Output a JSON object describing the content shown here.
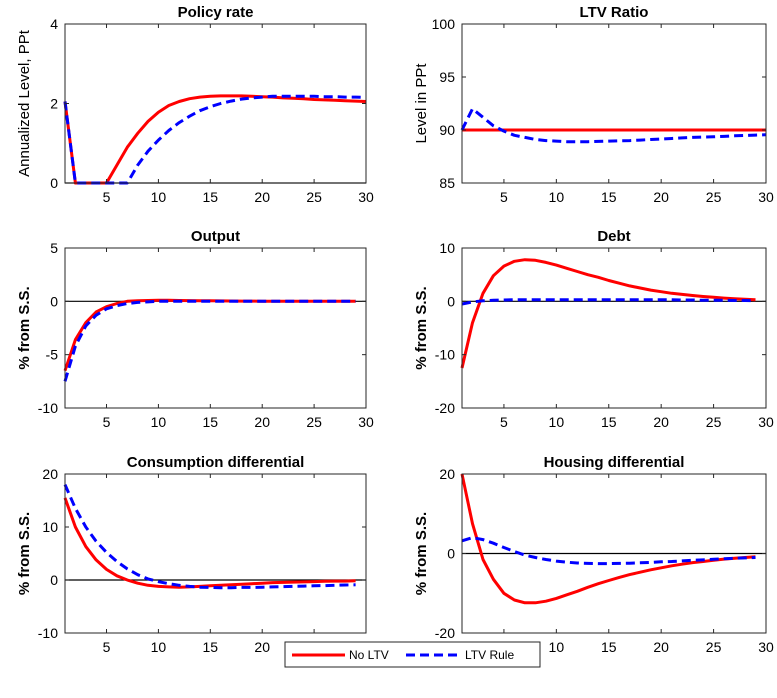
{
  "chart_data": [
    {
      "type": "line",
      "title": "Policy rate",
      "xlabel": "",
      "ylabel": "Annualized Level, PPt",
      "xlim": [
        1,
        30
      ],
      "ylim": [
        0,
        4
      ],
      "xticks": [
        5,
        10,
        15,
        20,
        25,
        30
      ],
      "yticks": [
        0,
        2,
        4
      ],
      "zero_line": true,
      "series": [
        {
          "name": "No LTV",
          "x": [
            1,
            2,
            3,
            4,
            5,
            6,
            7,
            8,
            9,
            10,
            11,
            12,
            13,
            14,
            15,
            16,
            17,
            18,
            19,
            20,
            21,
            22,
            23,
            24,
            25,
            26,
            27,
            28,
            29,
            30
          ],
          "values": [
            2.05,
            0,
            0,
            0,
            0,
            0.45,
            0.9,
            1.25,
            1.55,
            1.78,
            1.95,
            2.05,
            2.12,
            2.16,
            2.18,
            2.19,
            2.19,
            2.19,
            2.18,
            2.17,
            2.16,
            2.14,
            2.13,
            2.12,
            2.1,
            2.09,
            2.08,
            2.07,
            2.06,
            2.05
          ]
        },
        {
          "name": "LTV Rule",
          "x": [
            1,
            2,
            3,
            4,
            5,
            6,
            7,
            8,
            9,
            10,
            11,
            12,
            13,
            14,
            15,
            16,
            17,
            18,
            19,
            20,
            21,
            22,
            23,
            24,
            25,
            26,
            27,
            28,
            29,
            30
          ],
          "values": [
            2.05,
            0,
            0,
            0,
            0,
            0,
            0,
            0.45,
            0.8,
            1.08,
            1.32,
            1.52,
            1.68,
            1.82,
            1.92,
            2.0,
            2.06,
            2.11,
            2.14,
            2.16,
            2.18,
            2.18,
            2.18,
            2.18,
            2.18,
            2.17,
            2.17,
            2.16,
            2.16,
            2.15
          ]
        }
      ]
    },
    {
      "type": "line",
      "title": "LTV Ratio",
      "xlabel": "",
      "ylabel": "Level in PPt",
      "xlim": [
        1,
        30
      ],
      "ylim": [
        85,
        100
      ],
      "xticks": [
        5,
        10,
        15,
        20,
        25,
        30
      ],
      "yticks": [
        85,
        90,
        95,
        100
      ],
      "zero_line": false,
      "series": [
        {
          "name": "No LTV",
          "x": [
            1,
            30
          ],
          "values": [
            90,
            90
          ]
        },
        {
          "name": "LTV Rule",
          "x": [
            1,
            2,
            3,
            4,
            5,
            6,
            7,
            8,
            9,
            10,
            11,
            12,
            13,
            14,
            15,
            16,
            17,
            18,
            19,
            20,
            21,
            22,
            23,
            24,
            25,
            26,
            27,
            28,
            29,
            30
          ],
          "values": [
            90,
            92,
            91.2,
            90.4,
            89.9,
            89.5,
            89.3,
            89.1,
            89.0,
            88.95,
            88.9,
            88.9,
            88.9,
            88.92,
            88.95,
            88.98,
            89.0,
            89.05,
            89.1,
            89.15,
            89.2,
            89.25,
            89.3,
            89.33,
            89.36,
            89.4,
            89.45,
            89.48,
            89.52,
            89.55
          ]
        }
      ]
    },
    {
      "type": "line",
      "title": "Output",
      "xlabel": "",
      "ylabel": "% from S.S.",
      "xlim": [
        1,
        30
      ],
      "ylim": [
        -10,
        5
      ],
      "xticks": [
        5,
        10,
        15,
        20,
        25,
        30
      ],
      "yticks": [
        -10,
        -5,
        0,
        5
      ],
      "zero_line": true,
      "series": [
        {
          "name": "No LTV",
          "x": [
            1,
            2,
            3,
            4,
            5,
            6,
            7,
            8,
            9,
            10,
            11,
            12,
            13,
            14,
            15,
            16,
            17,
            18,
            19,
            20,
            21,
            22,
            23,
            24,
            25,
            26,
            27,
            28,
            29
          ],
          "values": [
            -6.5,
            -3.6,
            -2.0,
            -1.0,
            -0.5,
            -0.2,
            0,
            0.05,
            0.08,
            0.1,
            0.1,
            0.08,
            0.07,
            0.06,
            0.05,
            0.04,
            0.03,
            0.02,
            0.02,
            0.01,
            0.01,
            0,
            0,
            0,
            0,
            0,
            0,
            0,
            0
          ]
        },
        {
          "name": "LTV Rule",
          "x": [
            1,
            2,
            3,
            4,
            5,
            6,
            7,
            8,
            9,
            10,
            11,
            12,
            13,
            14,
            15,
            16,
            17,
            18,
            19,
            20,
            21,
            22,
            23,
            24,
            25,
            26,
            27,
            28,
            29
          ],
          "values": [
            -7.5,
            -4.2,
            -2.3,
            -1.3,
            -0.7,
            -0.4,
            -0.2,
            -0.1,
            -0.05,
            0,
            0,
            0,
            0,
            0,
            0,
            0,
            0,
            0,
            0,
            0,
            0,
            0,
            0,
            0,
            0,
            0,
            0,
            0,
            0
          ]
        }
      ]
    },
    {
      "type": "line",
      "title": "Debt",
      "xlabel": "",
      "ylabel": "% from S.S.",
      "xlim": [
        1,
        30
      ],
      "ylim": [
        -20,
        10
      ],
      "xticks": [
        5,
        10,
        15,
        20,
        25,
        30
      ],
      "yticks": [
        -20,
        -10,
        0,
        10
      ],
      "zero_line": true,
      "series": [
        {
          "name": "No LTV",
          "x": [
            1,
            2,
            3,
            4,
            5,
            6,
            7,
            8,
            9,
            10,
            11,
            12,
            13,
            14,
            15,
            16,
            17,
            18,
            19,
            20,
            21,
            22,
            23,
            24,
            25,
            26,
            27,
            28,
            29
          ],
          "values": [
            -12.5,
            -4.0,
            1.5,
            4.8,
            6.6,
            7.5,
            7.8,
            7.7,
            7.3,
            6.8,
            6.2,
            5.6,
            5.0,
            4.5,
            3.9,
            3.4,
            2.9,
            2.5,
            2.1,
            1.8,
            1.5,
            1.3,
            1.1,
            0.9,
            0.75,
            0.6,
            0.5,
            0.4,
            0.3
          ]
        },
        {
          "name": "LTV Rule",
          "x": [
            1,
            2,
            3,
            4,
            5,
            6,
            7,
            8,
            9,
            10,
            11,
            12,
            13,
            14,
            15,
            16,
            17,
            18,
            19,
            20,
            21,
            22,
            23,
            24,
            25,
            26,
            27,
            28,
            29
          ],
          "values": [
            -0.5,
            -0.1,
            0.1,
            0.2,
            0.25,
            0.3,
            0.3,
            0.3,
            0.3,
            0.3,
            0.3,
            0.3,
            0.3,
            0.3,
            0.3,
            0.3,
            0.3,
            0.3,
            0.3,
            0.3,
            0.3,
            0.25,
            0.25,
            0.2,
            0.2,
            0.2,
            0.15,
            0.15,
            0.1
          ]
        }
      ]
    },
    {
      "type": "line",
      "title": "Consumption differential",
      "xlabel": "",
      "ylabel": "% from S.S.",
      "xlim": [
        1,
        30
      ],
      "ylim": [
        -10,
        20
      ],
      "xticks": [
        5,
        10,
        15,
        20,
        25,
        30
      ],
      "yticks": [
        -10,
        0,
        10,
        20
      ],
      "zero_line": true,
      "series": [
        {
          "name": "No LTV",
          "x": [
            1,
            2,
            3,
            4,
            5,
            6,
            7,
            8,
            9,
            10,
            11,
            12,
            13,
            14,
            15,
            16,
            17,
            18,
            19,
            20,
            21,
            22,
            23,
            24,
            25,
            26,
            27,
            28,
            29
          ],
          "values": [
            15.5,
            10.0,
            6.3,
            3.8,
            2.0,
            0.8,
            0,
            -0.6,
            -1.0,
            -1.2,
            -1.3,
            -1.35,
            -1.3,
            -1.2,
            -1.1,
            -1.0,
            -0.9,
            -0.8,
            -0.7,
            -0.6,
            -0.5,
            -0.45,
            -0.4,
            -0.35,
            -0.3,
            -0.25,
            -0.2,
            -0.2,
            -0.15
          ]
        },
        {
          "name": "LTV Rule",
          "x": [
            1,
            2,
            3,
            4,
            5,
            6,
            7,
            8,
            9,
            10,
            11,
            12,
            13,
            14,
            15,
            16,
            17,
            18,
            19,
            20,
            21,
            22,
            23,
            24,
            25,
            26,
            27,
            28,
            29
          ],
          "values": [
            18.0,
            13.5,
            10.0,
            7.3,
            5.2,
            3.5,
            2.1,
            1.0,
            0.2,
            -0.3,
            -0.7,
            -1.0,
            -1.2,
            -1.35,
            -1.4,
            -1.45,
            -1.45,
            -1.4,
            -1.4,
            -1.35,
            -1.3,
            -1.25,
            -1.2,
            -1.15,
            -1.1,
            -1.05,
            -1.0,
            -0.95,
            -0.9
          ]
        }
      ]
    },
    {
      "type": "line",
      "title": "Housing differential",
      "xlabel": "",
      "ylabel": "% from S.S.",
      "xlim": [
        1,
        30
      ],
      "ylim": [
        -20,
        20
      ],
      "xticks": [
        5,
        10,
        15,
        20,
        25,
        30
      ],
      "yticks": [
        -20,
        0,
        20
      ],
      "zero_line": true,
      "series": [
        {
          "name": "No LTV",
          "x": [
            1,
            2,
            3,
            4,
            5,
            6,
            7,
            8,
            9,
            10,
            11,
            12,
            13,
            14,
            15,
            16,
            17,
            18,
            19,
            20,
            21,
            22,
            23,
            24,
            25,
            26,
            27,
            28,
            29
          ],
          "values": [
            20.0,
            7.5,
            -1.5,
            -6.5,
            -10.0,
            -11.7,
            -12.4,
            -12.4,
            -12.0,
            -11.3,
            -10.4,
            -9.5,
            -8.5,
            -7.6,
            -6.8,
            -6.0,
            -5.3,
            -4.7,
            -4.1,
            -3.6,
            -3.1,
            -2.7,
            -2.3,
            -2.0,
            -1.7,
            -1.4,
            -1.2,
            -1.0,
            -0.8
          ]
        },
        {
          "name": "LTV Rule",
          "x": [
            1,
            2,
            3,
            4,
            5,
            6,
            7,
            8,
            9,
            10,
            11,
            12,
            13,
            14,
            15,
            16,
            17,
            18,
            19,
            20,
            21,
            22,
            23,
            24,
            25,
            26,
            27,
            28,
            29
          ],
          "values": [
            3.2,
            4.0,
            3.5,
            2.6,
            1.5,
            0.5,
            -0.4,
            -1.0,
            -1.5,
            -1.9,
            -2.2,
            -2.4,
            -2.5,
            -2.55,
            -2.55,
            -2.5,
            -2.45,
            -2.35,
            -2.25,
            -2.1,
            -2.0,
            -1.85,
            -1.7,
            -1.6,
            -1.45,
            -1.3,
            -1.2,
            -1.1,
            -1.0
          ]
        }
      ]
    }
  ],
  "legend": {
    "placement": "bottom-center",
    "entries": [
      {
        "label": "No LTV",
        "color": "#ff0000",
        "style": "solid"
      },
      {
        "label": "LTV Rule",
        "color": "#0000ff",
        "style": "dashed"
      }
    ]
  },
  "colors": {
    "no_ltv": "#ff0000",
    "ltv_rule": "#0000ff"
  }
}
